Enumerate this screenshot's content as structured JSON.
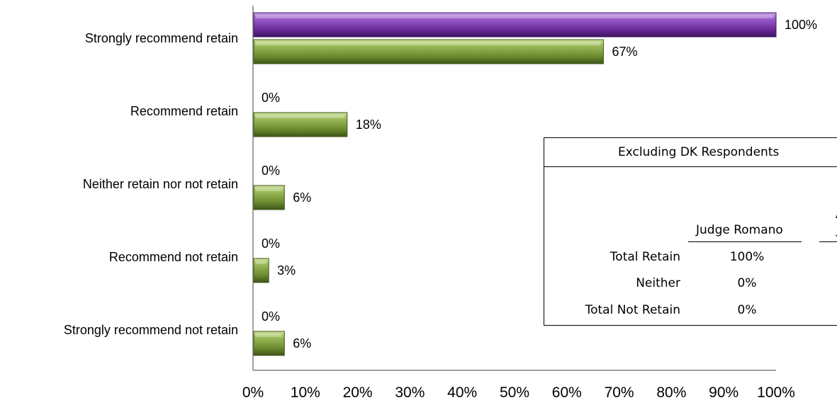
{
  "chart_data": {
    "type": "bar",
    "orientation": "horizontal",
    "categories": [
      "Strongly recommend retain",
      "Recommend retain",
      "Neither retain nor not retain",
      "Recommend not retain",
      "Strongly recommend not retain"
    ],
    "series": [
      {
        "values": [
          100,
          0,
          0,
          0,
          0
        ],
        "labels": [
          "100%",
          "0%",
          "0%",
          "0%",
          "0%"
        ],
        "color": "#7030a0"
      },
      {
        "values": [
          67,
          18,
          6,
          3,
          6
        ],
        "labels": [
          "67%",
          "18%",
          "6%",
          "3%",
          "6%"
        ],
        "color": "#77933c"
      }
    ],
    "xlim": [
      0,
      100
    ],
    "x_ticks": [
      "0%",
      "10%",
      "20%",
      "30%",
      "40%",
      "50%",
      "60%",
      "70%",
      "80%",
      "90%",
      "100%"
    ],
    "grid": false,
    "legend": "none"
  },
  "summary_table": {
    "title": "Excluding DK Respondents",
    "column_header": "Judge Romano",
    "second_header_fragment": "J",
    "second_header_top_fragment": "A",
    "rows": [
      {
        "label": "Total Retain",
        "value": "100%"
      },
      {
        "label": "Neither",
        "value": "0%"
      },
      {
        "label": "Total Not Retain",
        "value": "0%"
      }
    ]
  }
}
